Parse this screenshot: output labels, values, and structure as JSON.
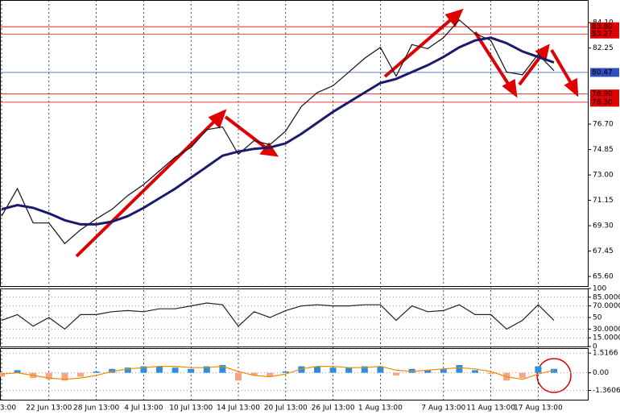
{
  "chart_data": [
    {
      "type": "line",
      "categories": [
        "3:00",
        null,
        null,
        "22 Jun 13:00",
        null,
        null,
        "28 Jun 13:00",
        null,
        null,
        "4 Jul 13:00",
        null,
        null,
        "10 Jul 13:00",
        null,
        null,
        "14 Jul 13:00",
        null,
        null,
        "20 Jul 13:00",
        null,
        null,
        "26 Jul 13:00",
        null,
        null,
        "1 Aug 13:00",
        null,
        null,
        null,
        "7 Aug 13:00",
        null,
        null,
        "11 Aug 13:00",
        null,
        null,
        "17 Aug 13:00",
        null
      ],
      "series": [
        {
          "color": "#111111",
          "values": [
            70.0,
            72.0,
            69.5,
            69.5,
            68.0,
            69.0,
            69.8,
            70.5,
            71.5,
            72.3,
            73.3,
            74.3,
            75.0,
            76.3,
            76.5,
            74.5,
            75.5,
            75.2,
            76.2,
            78.0,
            79.0,
            79.5,
            80.5,
            81.5,
            82.3,
            80.2,
            82.5,
            82.2,
            83.0,
            84.3,
            83.3,
            82.8,
            80.5,
            80.3,
            81.8,
            80.6
          ]
        },
        {
          "color": "#1a1a6e",
          "values": [
            70.5,
            70.8,
            70.6,
            70.2,
            69.7,
            69.4,
            69.4,
            69.6,
            70.0,
            70.6,
            71.3,
            72.0,
            72.8,
            73.6,
            74.4,
            74.7,
            74.9,
            75.0,
            75.3,
            76.0,
            76.8,
            77.6,
            78.3,
            79.0,
            79.7,
            80.0,
            80.5,
            81.0,
            81.6,
            82.3,
            82.8,
            83.0,
            82.6,
            82.0,
            81.6,
            81.2
          ]
        }
      ],
      "ylim": [
        64.9,
        85.75
      ],
      "yticks": [
        {
          "value": 84.1,
          "label": "84.10"
        },
        82.25,
        {
          "value": 76.7,
          "label": "76.70"
        },
        74.85,
        {
          "value": 73.0,
          "label": "73.00"
        },
        71.15,
        {
          "value": 69.3,
          "label": "69.30"
        },
        67.45,
        {
          "value": 65.6,
          "label": "65.60"
        }
      ],
      "hlines": [
        {
          "value": 83.8,
          "label": "83.80",
          "color": "#e00000"
        },
        {
          "value": 83.27,
          "label": "83.27",
          "color": "#e00000"
        },
        {
          "value": 80.47,
          "label": "80.47",
          "color": "#3050c0"
        },
        {
          "value": 78.9,
          "label": "78.90",
          "color": "#e00000"
        },
        {
          "value": 78.3,
          "label": "78.30",
          "color": "#e00000"
        }
      ]
    },
    {
      "type": "line",
      "series": [
        {
          "color": "#222222",
          "values": [
            45,
            55,
            35,
            50,
            30,
            55,
            55,
            60,
            62,
            60,
            65,
            65,
            70,
            75,
            72,
            35,
            60,
            50,
            62,
            70,
            72,
            70,
            70,
            72,
            72,
            45,
            70,
            60,
            62,
            72,
            55,
            55,
            30,
            45,
            72,
            45
          ]
        }
      ],
      "ylim": [
        0,
        100
      ],
      "yticks": [
        100,
        {
          "value": 85,
          "label": "85.0000"
        },
        {
          "value": 70,
          "label": "70.0000"
        },
        50,
        {
          "value": 30,
          "label": "30.0000"
        },
        {
          "value": 15,
          "label": "15.0000"
        },
        0
      ]
    },
    {
      "type": "bar",
      "values": [
        -0.3,
        0.2,
        -0.4,
        -0.5,
        -0.6,
        -0.3,
        0.1,
        0.3,
        0.4,
        0.5,
        0.5,
        0.4,
        0.3,
        0.5,
        0.6,
        -0.6,
        -0.2,
        -0.3,
        0.1,
        0.5,
        0.5,
        0.4,
        0.4,
        0.5,
        0.5,
        -0.2,
        0.3,
        0.2,
        0.3,
        0.6,
        0.2,
        -0.1,
        -0.6,
        -0.4,
        0.5,
        0.3
      ],
      "color": "#2b8fe0",
      "negative_color": "#f4a582",
      "series": [
        {
          "color": "#f08a00",
          "values": [
            -0.1,
            0,
            -0.2,
            -0.4,
            -0.5,
            -0.4,
            -0.2,
            0.1,
            0.3,
            0.4,
            0.5,
            0.5,
            0.4,
            0.4,
            0.5,
            0.1,
            -0.2,
            -0.3,
            -0.1,
            0.3,
            0.5,
            0.5,
            0.4,
            0.4,
            0.5,
            0.2,
            0.1,
            0.2,
            0.3,
            0.4,
            0.3,
            0.1,
            -0.3,
            -0.5,
            -0.1,
            0.2
          ]
        }
      ],
      "ylim": [
        -2.07,
        1.9
      ],
      "yticks": [
        1.5166,
        {
          "value": 0,
          "label": "0.00"
        },
        -1.3606
      ]
    }
  ]
}
